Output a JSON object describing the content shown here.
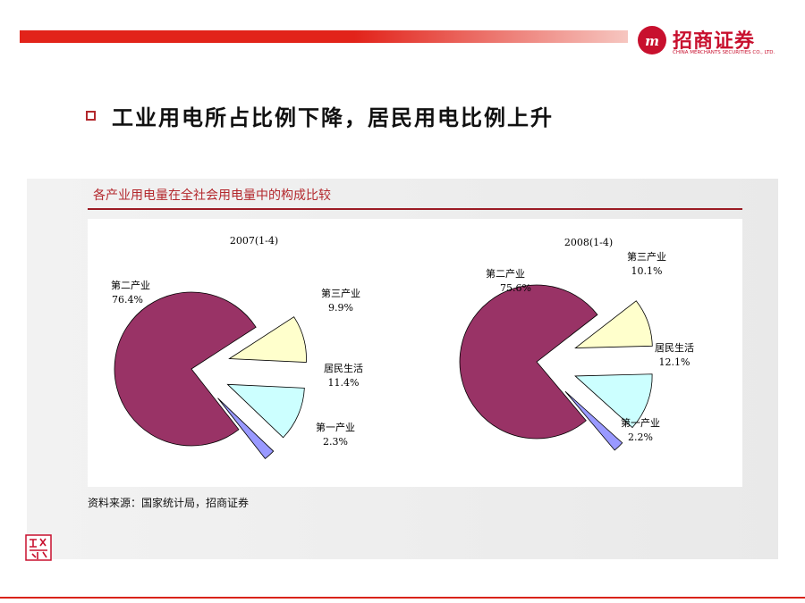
{
  "brand": {
    "name_cn": "招商证券",
    "name_en": "CHINA MERCHANTS SECURITIES CO., LTD.",
    "color": "#c8102e"
  },
  "heading": "工业用电所占比例下降，居民用电比例上升",
  "source_note": "资料来源：国家统计局，招商证券",
  "chart_data": {
    "type": "pie",
    "title": "各产业用电量在全社会用电量中的构成比较",
    "charts": [
      {
        "subtitle": "2007(1-4)",
        "slices": [
          {
            "name": "第二产业",
            "value": 76.4,
            "label": "76.4%",
            "color": "#993366"
          },
          {
            "name": "第三产业",
            "value": 9.9,
            "label": "9.9%",
            "color": "#ffffcc"
          },
          {
            "name": "居民生活",
            "value": 11.4,
            "label": "11.4%",
            "color": "#ccffff"
          },
          {
            "name": "第一产业",
            "value": 2.3,
            "label": "2.3%",
            "color": "#9999ff"
          }
        ]
      },
      {
        "subtitle": "2008(1-4)",
        "slices": [
          {
            "name": "第二产业",
            "value": 75.6,
            "label": "75.6%",
            "color": "#993366"
          },
          {
            "name": "第三产业",
            "value": 10.1,
            "label": "10.1%",
            "color": "#ffffcc"
          },
          {
            "name": "居民生活",
            "value": 12.1,
            "label": "12.1%",
            "color": "#ccffff"
          },
          {
            "name": "第一产业",
            "value": 2.2,
            "label": "2.2%",
            "color": "#9999ff"
          }
        ]
      }
    ]
  }
}
